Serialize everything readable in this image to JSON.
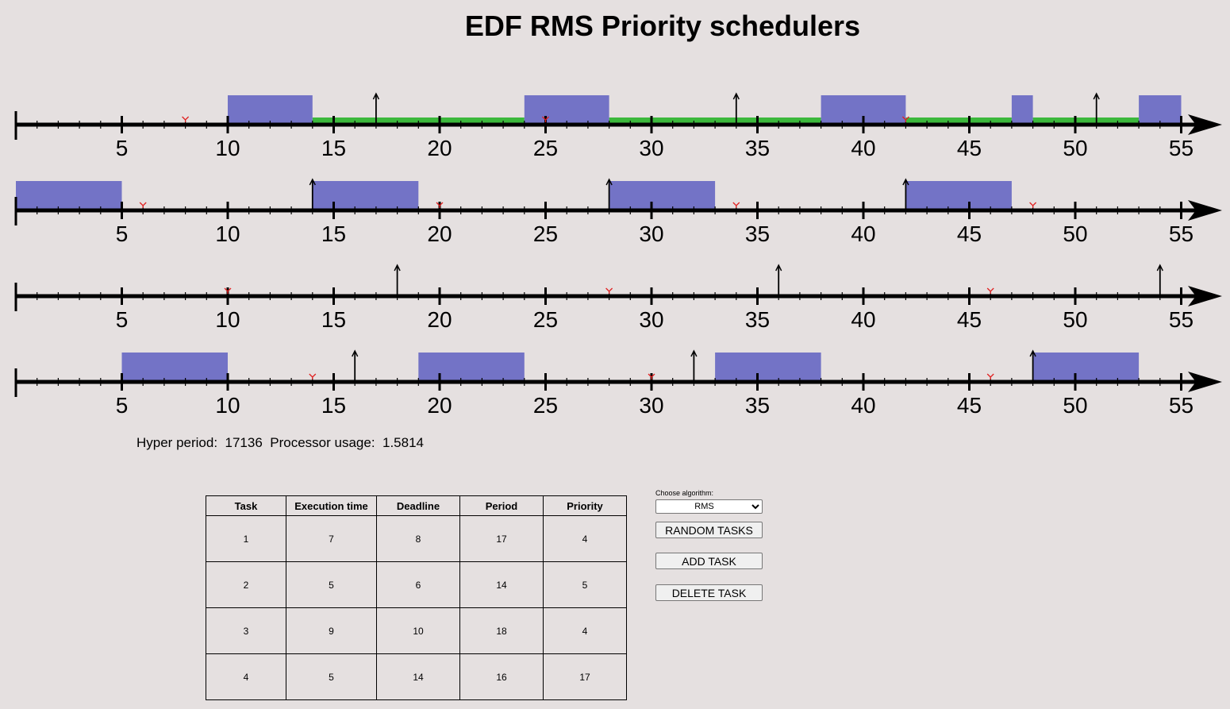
{
  "title": "EDF RMS Priority schedulers",
  "axis_ticks": [
    "5",
    "10",
    "15",
    "20",
    "25",
    "30",
    "35",
    "40",
    "45",
    "50",
    "55"
  ],
  "timelines": [
    {
      "task": "1",
      "executions": [
        [
          10,
          14
        ],
        [
          24,
          28
        ],
        [
          38,
          42
        ],
        [
          47,
          48
        ],
        [
          53,
          55
        ]
      ],
      "waiting": [
        [
          14,
          24
        ],
        [
          28,
          38
        ],
        [
          42,
          47
        ],
        [
          48,
          53
        ]
      ],
      "arrivals": [
        17,
        34,
        51
      ],
      "deadlines": [
        8,
        25,
        42
      ]
    },
    {
      "task": "2",
      "executions": [
        [
          0,
          5
        ],
        [
          14,
          19
        ],
        [
          28,
          33
        ],
        [
          42,
          47
        ]
      ],
      "waiting": [],
      "arrivals": [
        14,
        28,
        42
      ],
      "deadlines": [
        6,
        20,
        34,
        48
      ]
    },
    {
      "task": "3",
      "executions": [],
      "waiting": [],
      "arrivals": [
        18,
        36,
        54
      ],
      "deadlines": [
        10,
        28,
        46
      ]
    },
    {
      "task": "4",
      "executions": [
        [
          5,
          10
        ],
        [
          19,
          24
        ],
        [
          33,
          38
        ],
        [
          48,
          53
        ]
      ],
      "waiting": [],
      "arrivals": [
        16,
        32,
        48
      ],
      "deadlines": [
        14,
        30,
        46
      ]
    }
  ],
  "colors": {
    "background": "#e5e0e0",
    "execution": "#7373c6",
    "waiting": "#3cb83c",
    "arrival": "#000000",
    "deadline": "#e02020",
    "axis": "#000000"
  },
  "stats": {
    "hyper_label": "Hyper period:",
    "hyper_value": "17136",
    "usage_label": "Processor usage:",
    "usage_value": "1.5814"
  },
  "table": {
    "headers": [
      "Task",
      "Execution time",
      "Deadline",
      "Period",
      "Priority"
    ],
    "rows": [
      [
        "1",
        "7",
        "8",
        "17",
        "4"
      ],
      [
        "2",
        "5",
        "6",
        "14",
        "5"
      ],
      [
        "3",
        "9",
        "10",
        "18",
        "4"
      ],
      [
        "4",
        "5",
        "14",
        "16",
        "17"
      ]
    ]
  },
  "controls": {
    "algorithm_label": "Choose algorithm:",
    "algorithm_selected": "RMS",
    "random_label": "RANDOM TASKS",
    "add_label": "ADD TASK",
    "delete_label": "DELETE TASK"
  }
}
